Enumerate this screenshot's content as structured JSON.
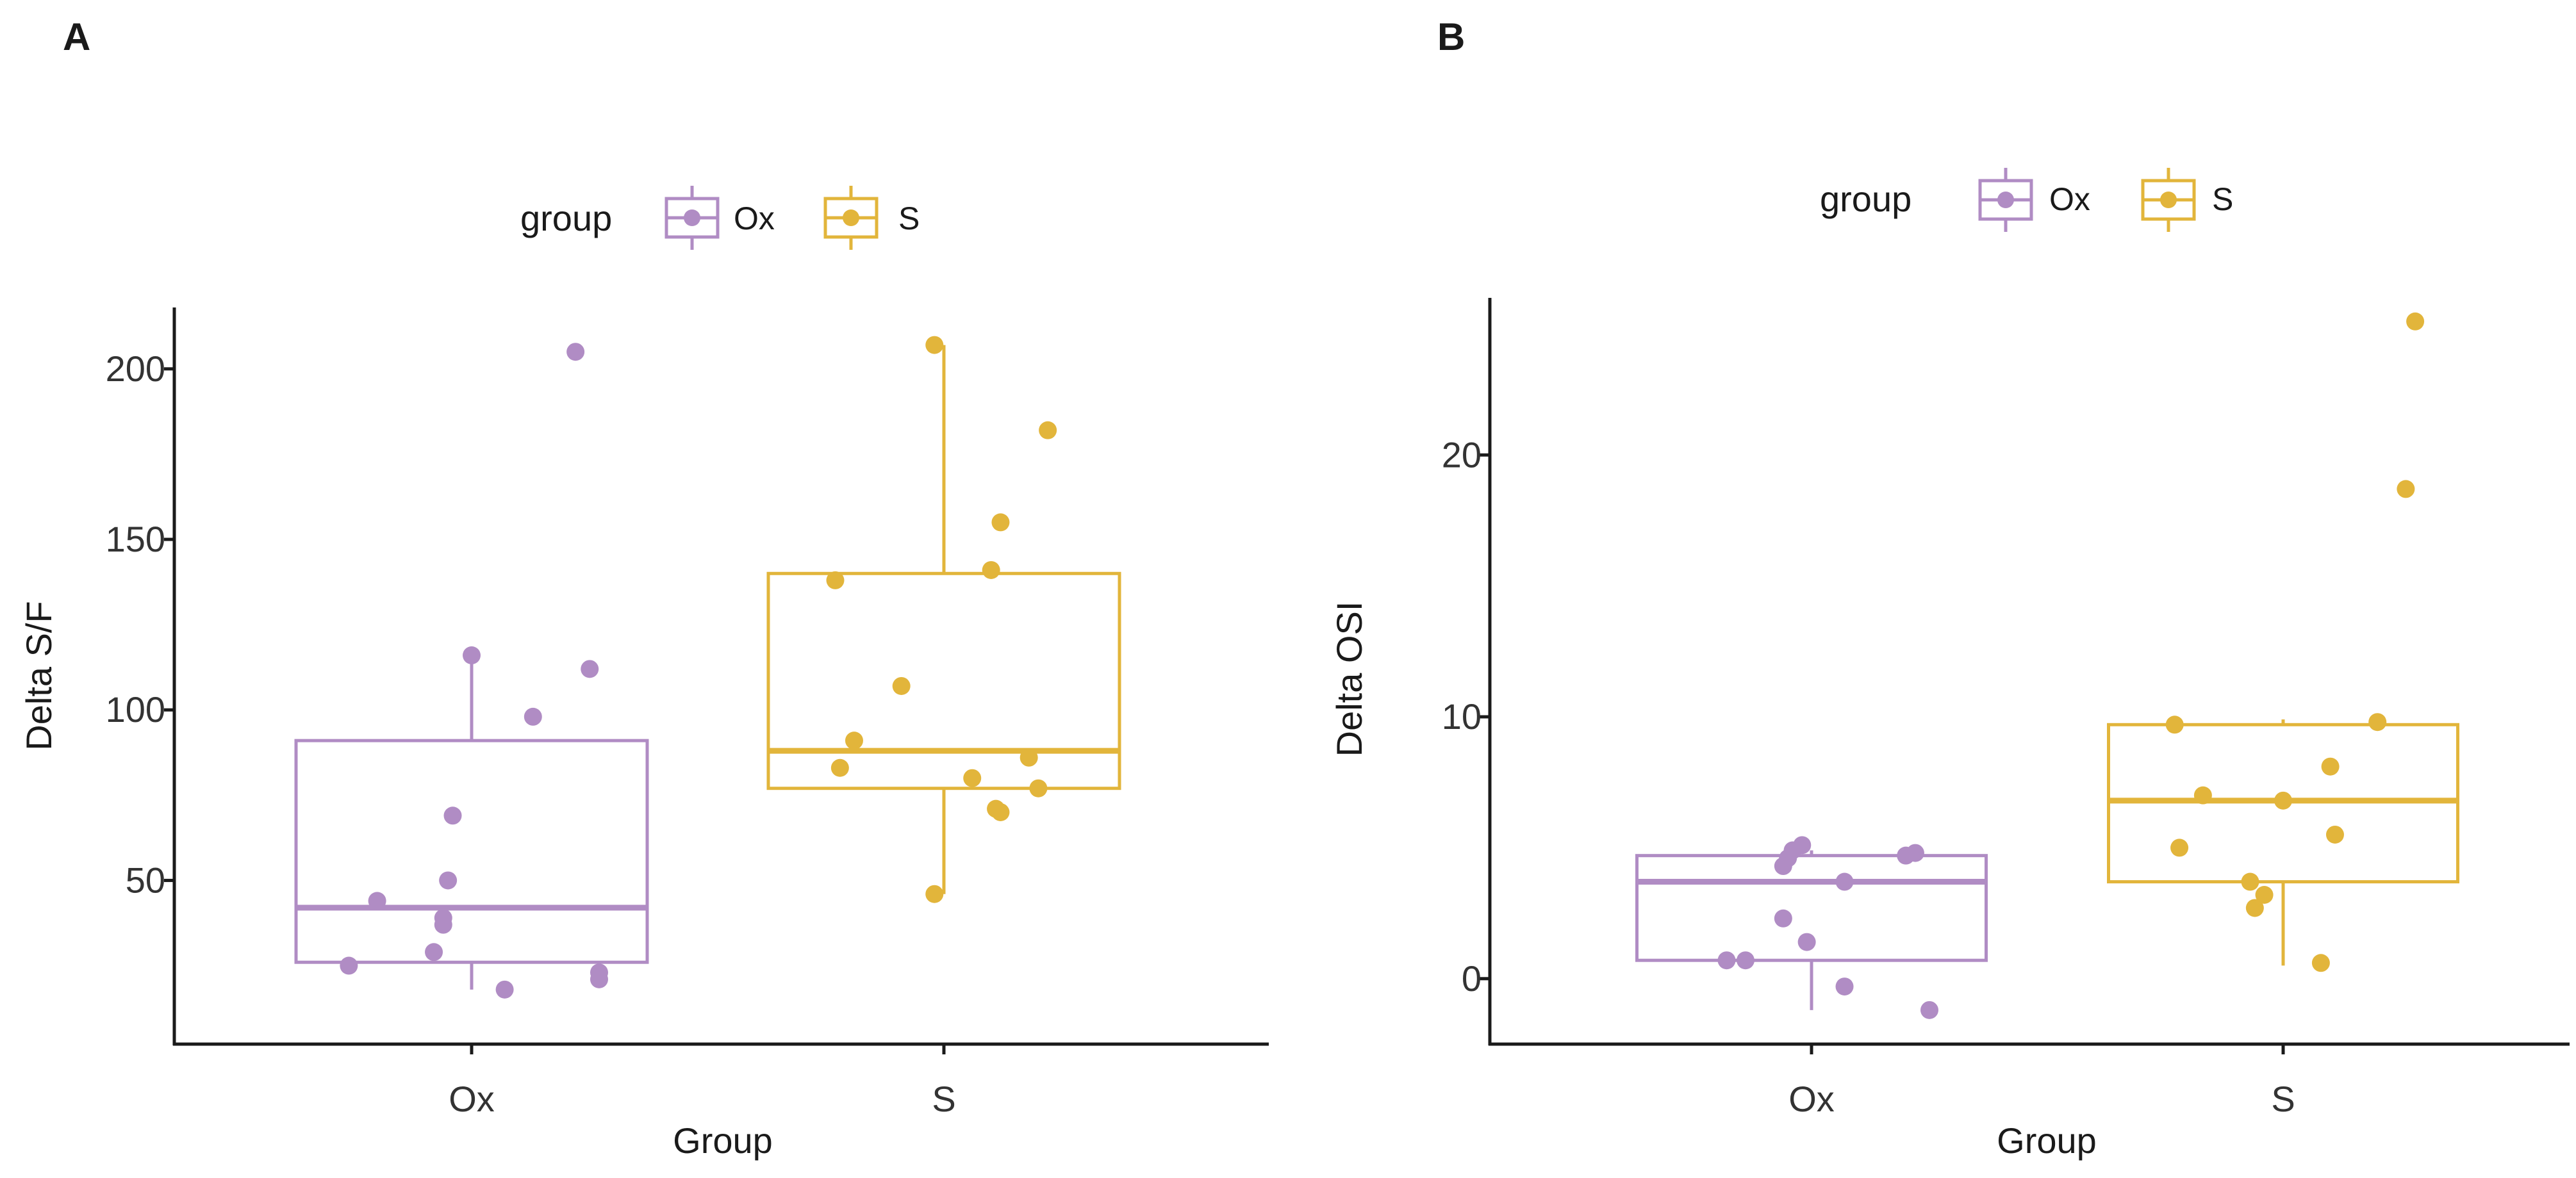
{
  "colors": {
    "Ox": "#B08CC4",
    "S": "#E2B53B",
    "axis": "#1a1a1a"
  },
  "chart_data": [
    {
      "panel": "A",
      "type": "boxplot",
      "xlabel": "Group",
      "ylabel": "Delta S/F",
      "ylim": [
        2,
        218
      ],
      "yticks": [
        50,
        100,
        150,
        200
      ],
      "categories": [
        "Ox",
        "S"
      ],
      "legend": {
        "title": "group",
        "position": "top",
        "entries": [
          "Ox",
          "S"
        ]
      },
      "grid": false,
      "boxes": [
        {
          "group": "Ox",
          "q1": 26,
          "median": 42,
          "q3": 91,
          "whisker_low": 18,
          "whisker_high": 116
        },
        {
          "group": "S",
          "q1": 77,
          "median": 88,
          "q3": 140,
          "whisker_low": 46,
          "whisker_high": 207
        }
      ],
      "points": [
        {
          "group": "Ox",
          "x": 1.22,
          "y": 205
        },
        {
          "group": "Ox",
          "x": 1.0,
          "y": 116
        },
        {
          "group": "Ox",
          "x": 1.25,
          "y": 112
        },
        {
          "group": "Ox",
          "x": 1.13,
          "y": 98
        },
        {
          "group": "Ox",
          "x": 0.96,
          "y": 69
        },
        {
          "group": "Ox",
          "x": 0.95,
          "y": 50
        },
        {
          "group": "Ox",
          "x": 0.8,
          "y": 44
        },
        {
          "group": "Ox",
          "x": 0.94,
          "y": 39
        },
        {
          "group": "Ox",
          "x": 0.94,
          "y": 37
        },
        {
          "group": "Ox",
          "x": 0.92,
          "y": 29
        },
        {
          "group": "Ox",
          "x": 0.74,
          "y": 25
        },
        {
          "group": "Ox",
          "x": 1.27,
          "y": 23
        },
        {
          "group": "Ox",
          "x": 1.27,
          "y": 21
        },
        {
          "group": "Ox",
          "x": 1.07,
          "y": 18
        },
        {
          "group": "S",
          "x": 1.98,
          "y": 207
        },
        {
          "group": "S",
          "x": 2.22,
          "y": 182
        },
        {
          "group": "S",
          "x": 2.12,
          "y": 155
        },
        {
          "group": "S",
          "x": 2.1,
          "y": 141
        },
        {
          "group": "S",
          "x": 1.77,
          "y": 138
        },
        {
          "group": "S",
          "x": 1.91,
          "y": 107
        },
        {
          "group": "S",
          "x": 1.81,
          "y": 91
        },
        {
          "group": "S",
          "x": 2.18,
          "y": 86
        },
        {
          "group": "S",
          "x": 1.78,
          "y": 83
        },
        {
          "group": "S",
          "x": 2.06,
          "y": 80
        },
        {
          "group": "S",
          "x": 2.2,
          "y": 77
        },
        {
          "group": "S",
          "x": 2.11,
          "y": 71
        },
        {
          "group": "S",
          "x": 2.12,
          "y": 70
        },
        {
          "group": "S",
          "x": 1.98,
          "y": 46
        }
      ]
    },
    {
      "panel": "B",
      "type": "boxplot",
      "xlabel": "Group",
      "ylabel": "Delta OSI",
      "ylim": [
        -2.5,
        26
      ],
      "yticks": [
        0,
        10,
        20
      ],
      "categories": [
        "Ox",
        "S"
      ],
      "legend": {
        "title": "group",
        "position": "top",
        "entries": [
          "Ox",
          "S"
        ]
      },
      "grid": false,
      "boxes": [
        {
          "group": "Ox",
          "q1": 0.7,
          "median": 3.7,
          "q3": 4.7,
          "whisker_low": -1.2,
          "whisker_high": 4.9
        },
        {
          "group": "S",
          "q1": 3.7,
          "median": 6.8,
          "q3": 9.7,
          "whisker_low": 0.5,
          "whisker_high": 9.9
        }
      ],
      "points": [
        {
          "group": "Ox",
          "x": 0.98,
          "y": 5.1
        },
        {
          "group": "Ox",
          "x": 0.96,
          "y": 4.9
        },
        {
          "group": "Ox",
          "x": 0.95,
          "y": 4.6
        },
        {
          "group": "Ox",
          "x": 1.22,
          "y": 4.8
        },
        {
          "group": "Ox",
          "x": 1.2,
          "y": 4.7
        },
        {
          "group": "Ox",
          "x": 0.94,
          "y": 4.3
        },
        {
          "group": "Ox",
          "x": 1.07,
          "y": 3.7
        },
        {
          "group": "Ox",
          "x": 0.94,
          "y": 2.3
        },
        {
          "group": "Ox",
          "x": 0.99,
          "y": 1.4
        },
        {
          "group": "Ox",
          "x": 0.82,
          "y": 0.7
        },
        {
          "group": "Ox",
          "x": 0.86,
          "y": 0.7
        },
        {
          "group": "Ox",
          "x": 1.07,
          "y": -0.3
        },
        {
          "group": "Ox",
          "x": 1.25,
          "y": -1.2
        },
        {
          "group": "S",
          "x": 2.28,
          "y": 25.1
        },
        {
          "group": "S",
          "x": 2.26,
          "y": 18.7
        },
        {
          "group": "S",
          "x": 1.77,
          "y": 9.7
        },
        {
          "group": "S",
          "x": 2.2,
          "y": 9.8
        },
        {
          "group": "S",
          "x": 2.1,
          "y": 8.1
        },
        {
          "group": "S",
          "x": 1.83,
          "y": 7.0
        },
        {
          "group": "S",
          "x": 2.0,
          "y": 6.8
        },
        {
          "group": "S",
          "x": 2.11,
          "y": 5.5
        },
        {
          "group": "S",
          "x": 1.78,
          "y": 5.0
        },
        {
          "group": "S",
          "x": 1.93,
          "y": 3.7
        },
        {
          "group": "S",
          "x": 1.96,
          "y": 3.2
        },
        {
          "group": "S",
          "x": 1.94,
          "y": 2.7
        },
        {
          "group": "S",
          "x": 2.08,
          "y": 0.6
        }
      ]
    }
  ]
}
